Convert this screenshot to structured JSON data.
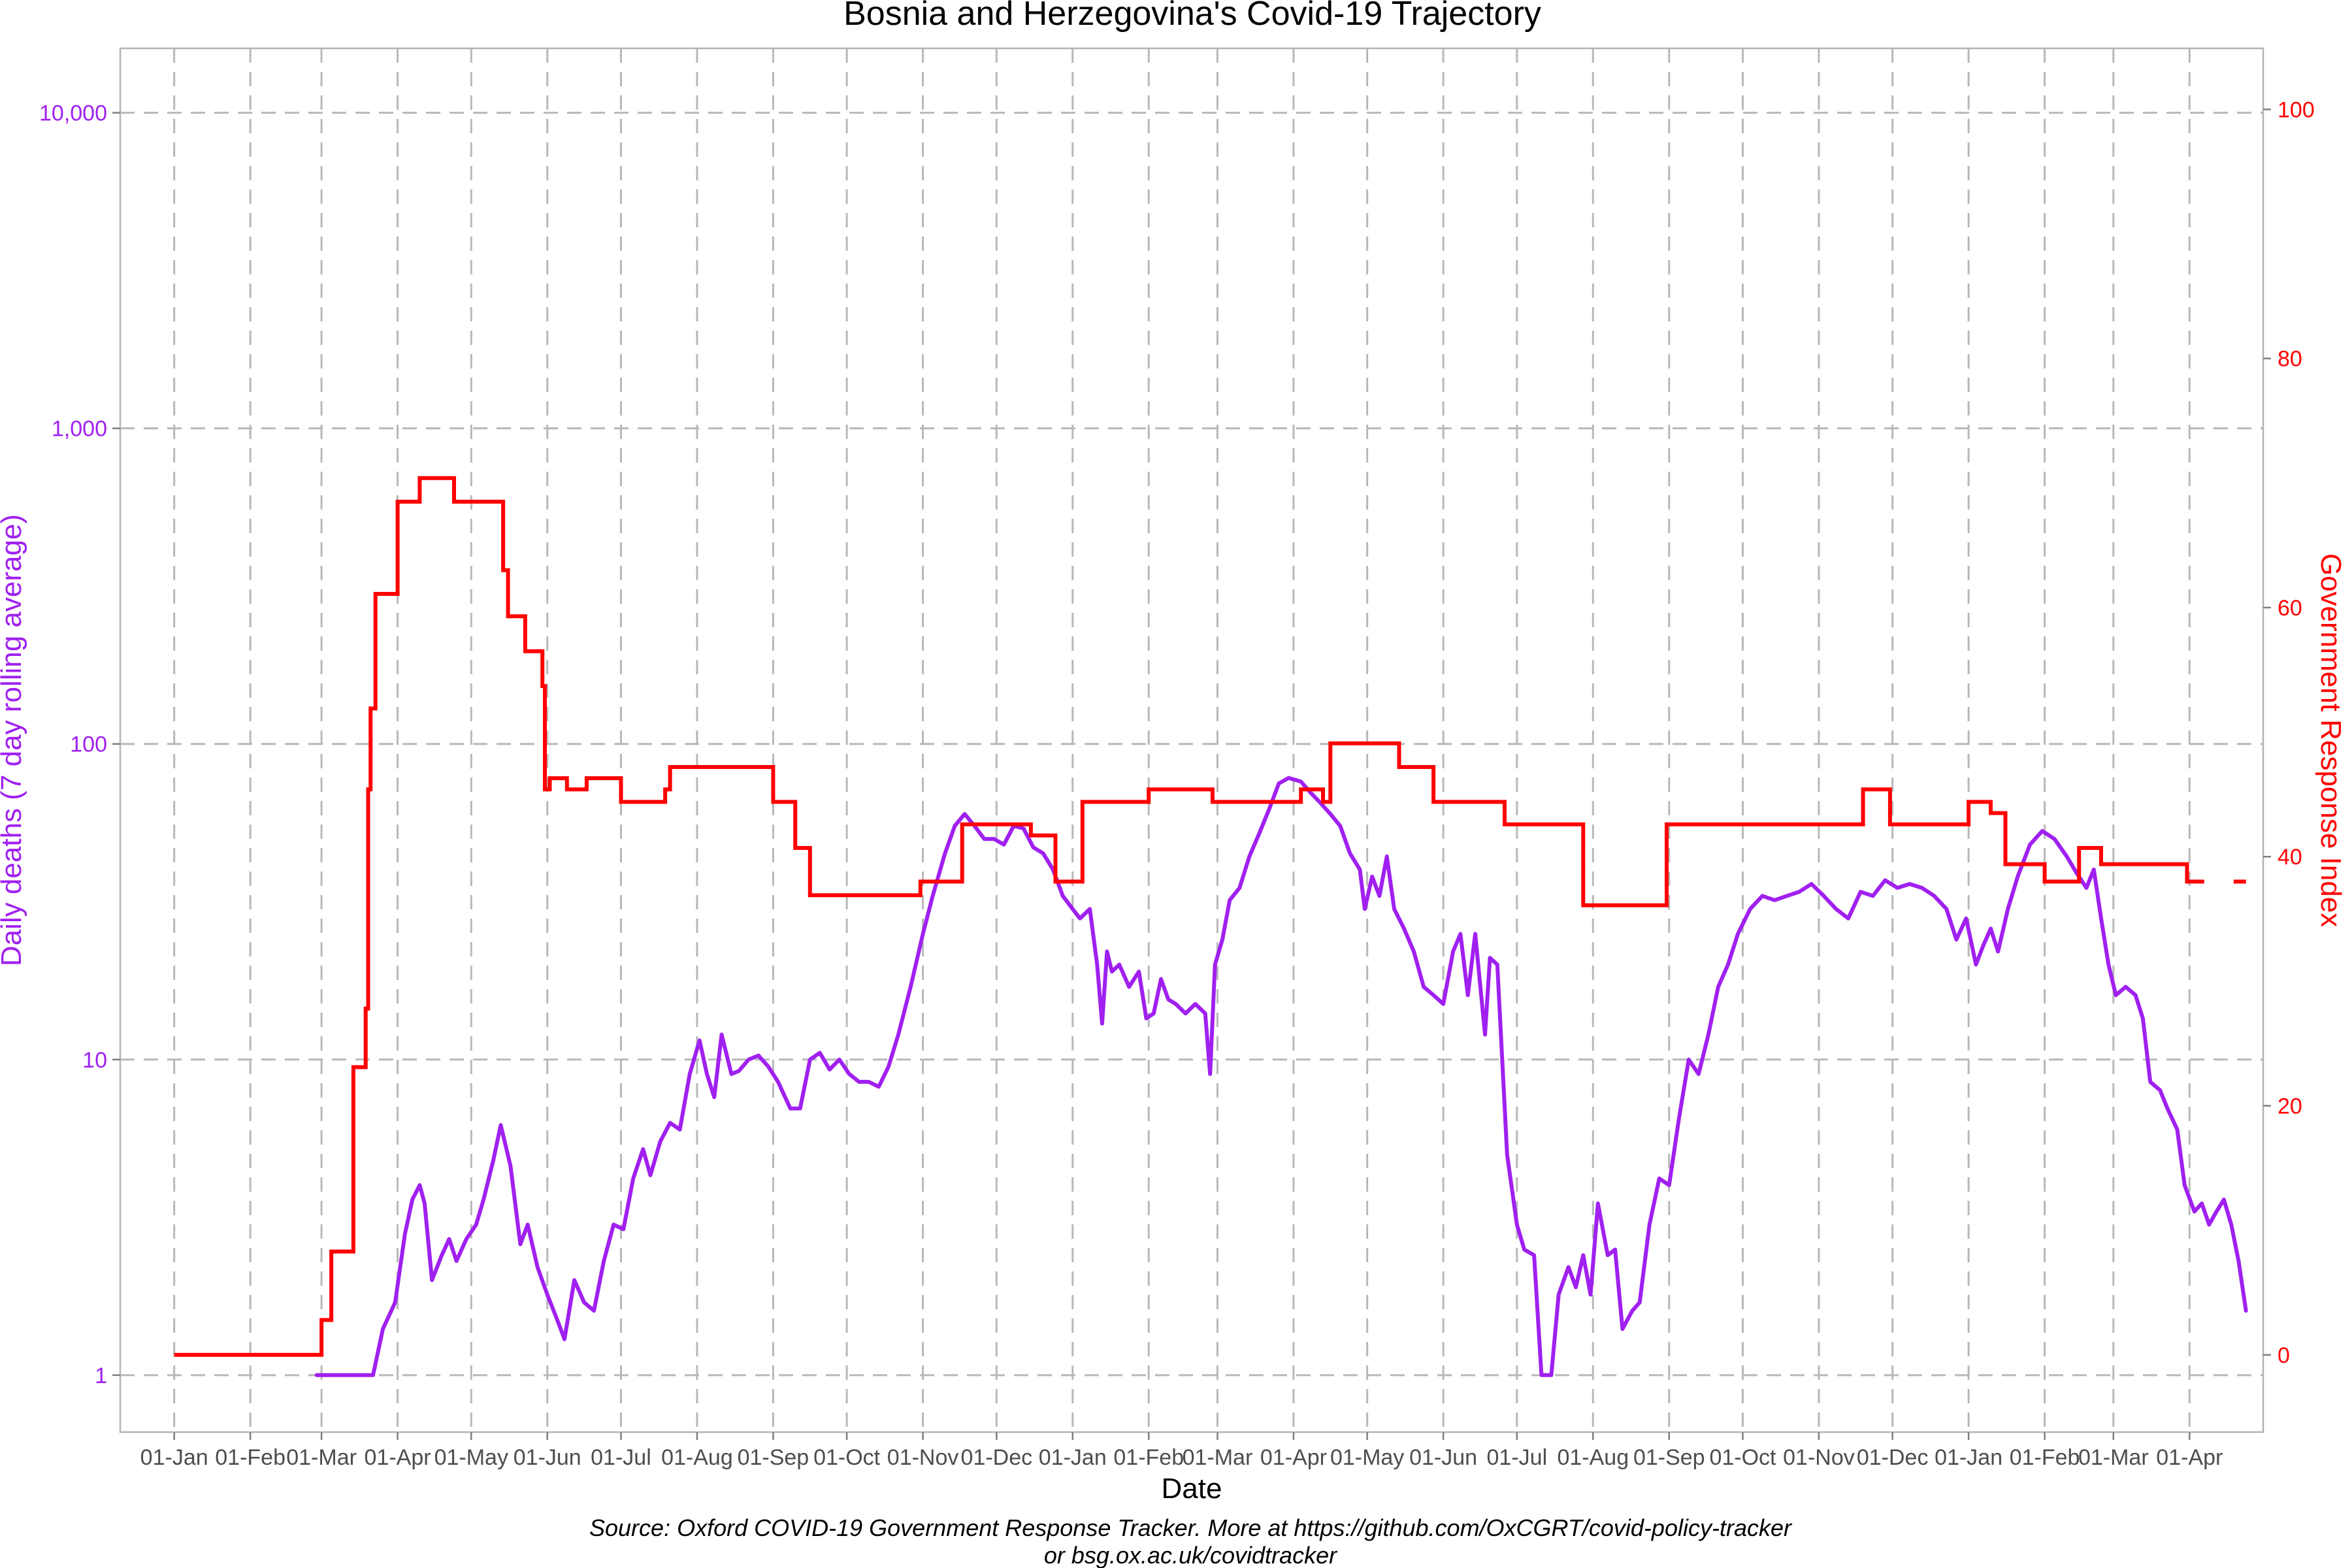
{
  "chart_data": {
    "type": "line",
    "title": "Bosnia and Herzegovina's Covid-19 Trajectory",
    "xlabel": "Date",
    "ylabel_left": "Daily deaths (7 day rolling average)",
    "ylabel_right": "Government Response Index",
    "caption": [
      "Source: Oxford COVID-19 Government Response Tracker. More at https://github.com/OxCGRT/covid-policy-tracker",
      "or bsg.ox.ac.uk/covidtracker"
    ],
    "x_tick_labels": [
      "01-Jan",
      "01-Feb",
      "01-Mar",
      "01-Apr",
      "01-May",
      "01-Jun",
      "01-Jul",
      "01-Aug",
      "01-Sep",
      "01-Oct",
      "01-Nov",
      "01-Dec",
      "01-Jan",
      "01-Feb",
      "01-Mar",
      "01-Apr",
      "01-May",
      "01-Jun",
      "01-Jul",
      "01-Aug",
      "01-Sep",
      "01-Oct",
      "01-Nov",
      "01-Dec",
      "01-Jan",
      "01-Feb",
      "01-Mar",
      "01-Apr"
    ],
    "x_tick_dates": [
      "2020-01-01",
      "2020-02-01",
      "2020-03-01",
      "2020-04-01",
      "2020-05-01",
      "2020-06-01",
      "2020-07-01",
      "2020-08-01",
      "2020-09-01",
      "2020-10-01",
      "2020-11-01",
      "2020-12-01",
      "2021-01-01",
      "2021-02-01",
      "2021-03-01",
      "2021-04-01",
      "2021-05-01",
      "2021-06-01",
      "2021-07-01",
      "2021-08-01",
      "2021-09-01",
      "2021-10-01",
      "2021-11-01",
      "2021-12-01",
      "2022-01-01",
      "2022-02-01",
      "2022-03-01",
      "2022-04-01"
    ],
    "xlim": [
      "2019-12-10",
      "2022-05-01"
    ],
    "y_left": {
      "scale": "log10",
      "lim": [
        0.66,
        16000
      ],
      "ticks": [
        1,
        10,
        100,
        1000,
        10000
      ],
      "tick_labels": [
        "1",
        "10",
        "100",
        "1,000",
        "10,000"
      ]
    },
    "y_right": {
      "scale": "linear",
      "lim": [
        -6.2,
        104.9
      ],
      "ticks": [
        0,
        20,
        40,
        60,
        80,
        100
      ],
      "tick_labels": [
        "0",
        "20",
        "40",
        "60",
        "80",
        "100"
      ]
    },
    "grid": true,
    "colors": {
      "deaths": "#a020f0",
      "stringency": "#ff0000",
      "grid": "#b8b8b8",
      "axis": "#b3b3b3"
    },
    "series": [
      {
        "axis": "left",
        "color": "#a020f0",
        "points": [
          [
            "2020-02-28",
            1
          ],
          [
            "2020-03-22",
            1
          ],
          [
            "2020-03-26",
            1.4
          ],
          [
            "2020-03-31",
            1.7
          ],
          [
            "2020-04-04",
            2.8
          ],
          [
            "2020-04-07",
            3.6
          ],
          [
            "2020-04-10",
            4.0
          ],
          [
            "2020-04-12",
            3.5
          ],
          [
            "2020-04-15",
            2.0
          ],
          [
            "2020-04-19",
            2.4
          ],
          [
            "2020-04-22",
            2.7
          ],
          [
            "2020-04-25",
            2.3
          ],
          [
            "2020-04-29",
            2.7
          ],
          [
            "2020-05-03",
            3.0
          ],
          [
            "2020-05-06",
            3.6
          ],
          [
            "2020-05-10",
            4.8
          ],
          [
            "2020-05-13",
            6.2
          ],
          [
            "2020-05-17",
            4.6
          ],
          [
            "2020-05-21",
            2.6
          ],
          [
            "2020-05-24",
            3.0
          ],
          [
            "2020-05-28",
            2.2
          ],
          [
            "2020-06-01",
            1.8
          ],
          [
            "2020-06-05",
            1.5
          ],
          [
            "2020-06-08",
            1.3
          ],
          [
            "2020-06-12",
            2.0
          ],
          [
            "2020-06-16",
            1.7
          ],
          [
            "2020-06-20",
            1.6
          ],
          [
            "2020-06-24",
            2.3
          ],
          [
            "2020-06-28",
            3.0
          ],
          [
            "2020-07-02",
            2.9
          ],
          [
            "2020-07-06",
            4.2
          ],
          [
            "2020-07-10",
            5.2
          ],
          [
            "2020-07-13",
            4.3
          ],
          [
            "2020-07-17",
            5.5
          ],
          [
            "2020-07-21",
            6.3
          ],
          [
            "2020-07-25",
            6.0
          ],
          [
            "2020-07-29",
            9.0
          ],
          [
            "2020-08-02",
            11.5
          ],
          [
            "2020-08-05",
            9.0
          ],
          [
            "2020-08-08",
            7.6
          ],
          [
            "2020-08-11",
            12.0
          ],
          [
            "2020-08-15",
            9.0
          ],
          [
            "2020-08-18",
            9.2
          ],
          [
            "2020-08-22",
            10.0
          ],
          [
            "2020-08-26",
            10.3
          ],
          [
            "2020-08-30",
            9.5
          ],
          [
            "2020-09-03",
            8.5
          ],
          [
            "2020-09-08",
            7.0
          ],
          [
            "2020-09-12",
            7.0
          ],
          [
            "2020-09-16",
            10.0
          ],
          [
            "2020-09-20",
            10.5
          ],
          [
            "2020-09-24",
            9.3
          ],
          [
            "2020-09-28",
            10.0
          ],
          [
            "2020-10-02",
            9.0
          ],
          [
            "2020-10-06",
            8.5
          ],
          [
            "2020-10-10",
            8.5
          ],
          [
            "2020-10-14",
            8.2
          ],
          [
            "2020-10-18",
            9.5
          ],
          [
            "2020-10-22",
            12.0
          ],
          [
            "2020-10-27",
            17.0
          ],
          [
            "2020-11-01",
            25.0
          ],
          [
            "2020-11-05",
            33.0
          ],
          [
            "2020-11-10",
            45.0
          ],
          [
            "2020-11-14",
            55.0
          ],
          [
            "2020-11-18",
            60.0
          ],
          [
            "2020-11-22",
            55.0
          ],
          [
            "2020-11-26",
            50.0
          ],
          [
            "2020-11-30",
            50.0
          ],
          [
            "2020-12-04",
            48.0
          ],
          [
            "2020-12-08",
            55.0
          ],
          [
            "2020-12-12",
            54.0
          ],
          [
            "2020-12-16",
            47.0
          ],
          [
            "2020-12-20",
            45.0
          ],
          [
            "2020-12-24",
            40.0
          ],
          [
            "2020-12-28",
            33.0
          ],
          [
            "2021-01-01",
            30.0
          ],
          [
            "2021-01-04",
            28.0
          ],
          [
            "2021-01-08",
            30.0
          ],
          [
            "2021-01-11",
            20.0
          ],
          [
            "2021-01-13",
            13.0
          ],
          [
            "2021-01-15",
            22.0
          ],
          [
            "2021-01-17",
            19.0
          ],
          [
            "2021-01-20",
            20.0
          ],
          [
            "2021-01-24",
            17.0
          ],
          [
            "2021-01-28",
            19.0
          ],
          [
            "2021-01-31",
            13.5
          ],
          [
            "2021-02-03",
            14.0
          ],
          [
            "2021-02-06",
            18.0
          ],
          [
            "2021-02-09",
            15.5
          ],
          [
            "2021-02-12",
            15.0
          ],
          [
            "2021-02-16",
            14.0
          ],
          [
            "2021-02-20",
            15.0
          ],
          [
            "2021-02-24",
            14.0
          ],
          [
            "2021-02-26",
            9.0
          ],
          [
            "2021-02-28",
            20.0
          ],
          [
            "2021-03-03",
            24.0
          ],
          [
            "2021-03-06",
            32.0
          ],
          [
            "2021-03-10",
            35.0
          ],
          [
            "2021-03-14",
            44.0
          ],
          [
            "2021-03-18",
            52.0
          ],
          [
            "2021-03-22",
            62.0
          ],
          [
            "2021-03-26",
            75.0
          ],
          [
            "2021-03-30",
            78.0
          ],
          [
            "2021-04-04",
            76.0
          ],
          [
            "2021-04-08",
            70.0
          ],
          [
            "2021-04-12",
            65.0
          ],
          [
            "2021-04-16",
            60.0
          ],
          [
            "2021-04-20",
            55.0
          ],
          [
            "2021-04-24",
            45.0
          ],
          [
            "2021-04-28",
            40.0
          ],
          [
            "2021-04-30",
            30.0
          ],
          [
            "2021-05-03",
            38.0
          ],
          [
            "2021-05-06",
            33.0
          ],
          [
            "2021-05-09",
            44.0
          ],
          [
            "2021-05-12",
            30.0
          ],
          [
            "2021-05-16",
            26.0
          ],
          [
            "2021-05-20",
            22.0
          ],
          [
            "2021-05-24",
            17.0
          ],
          [
            "2021-05-28",
            16.0
          ],
          [
            "2021-06-01",
            15.0
          ],
          [
            "2021-06-05",
            22.0
          ],
          [
            "2021-06-08",
            25.0
          ],
          [
            "2021-06-11",
            16.0
          ],
          [
            "2021-06-14",
            25.0
          ],
          [
            "2021-06-18",
            12.0
          ],
          [
            "2021-06-20",
            21.0
          ],
          [
            "2021-06-23",
            20.0
          ],
          [
            "2021-06-27",
            5.0
          ],
          [
            "2021-07-01",
            3.0
          ],
          [
            "2021-07-04",
            2.5
          ],
          [
            "2021-07-08",
            2.4
          ],
          [
            "2021-07-11",
            1.0
          ],
          [
            "2021-07-15",
            1.0
          ],
          [
            "2021-07-18",
            1.8
          ],
          [
            "2021-07-22",
            2.2
          ],
          [
            "2021-07-25",
            1.9
          ],
          [
            "2021-07-28",
            2.4
          ],
          [
            "2021-07-31",
            1.8
          ],
          [
            "2021-08-03",
            3.5
          ],
          [
            "2021-08-07",
            2.4
          ],
          [
            "2021-08-10",
            2.5
          ],
          [
            "2021-08-13",
            1.4
          ],
          [
            "2021-08-17",
            1.6
          ],
          [
            "2021-08-20",
            1.7
          ],
          [
            "2021-08-24",
            3.0
          ],
          [
            "2021-08-28",
            4.2
          ],
          [
            "2021-09-01",
            4.0
          ],
          [
            "2021-09-05",
            6.5
          ],
          [
            "2021-09-09",
            10.0
          ],
          [
            "2021-09-13",
            9.0
          ],
          [
            "2021-09-17",
            12.0
          ],
          [
            "2021-09-21",
            17.0
          ],
          [
            "2021-09-25",
            20.0
          ],
          [
            "2021-09-29",
            25.0
          ],
          [
            "2021-10-04",
            30.0
          ],
          [
            "2021-10-09",
            33.0
          ],
          [
            "2021-10-14",
            32.0
          ],
          [
            "2021-10-19",
            33.0
          ],
          [
            "2021-10-24",
            34.0
          ],
          [
            "2021-10-29",
            36.0
          ],
          [
            "2021-11-03",
            33.0
          ],
          [
            "2021-11-08",
            30.0
          ],
          [
            "2021-11-13",
            28.0
          ],
          [
            "2021-11-18",
            34.0
          ],
          [
            "2021-11-23",
            33.0
          ],
          [
            "2021-11-28",
            37.0
          ],
          [
            "2021-12-03",
            35.0
          ],
          [
            "2021-12-08",
            36.0
          ],
          [
            "2021-12-13",
            35.0
          ],
          [
            "2021-12-18",
            33.0
          ],
          [
            "2021-12-23",
            30.0
          ],
          [
            "2021-12-27",
            24.0
          ],
          [
            "2021-12-31",
            28.0
          ],
          [
            "2022-01-04",
            20.0
          ],
          [
            "2022-01-07",
            23.0
          ],
          [
            "2022-01-10",
            26.0
          ],
          [
            "2022-01-13",
            22.0
          ],
          [
            "2022-01-17",
            30.0
          ],
          [
            "2022-01-21",
            38.0
          ],
          [
            "2022-01-26",
            48.0
          ],
          [
            "2022-01-31",
            53.0
          ],
          [
            "2022-02-05",
            50.0
          ],
          [
            "2022-02-10",
            44.0
          ],
          [
            "2022-02-14",
            39.0
          ],
          [
            "2022-02-18",
            35.0
          ],
          [
            "2022-02-21",
            40.0
          ],
          [
            "2022-02-24",
            28.0
          ],
          [
            "2022-02-27",
            20.0
          ],
          [
            "2022-03-02",
            16.0
          ],
          [
            "2022-03-06",
            17.0
          ],
          [
            "2022-03-10",
            16.0
          ],
          [
            "2022-03-13",
            13.5
          ],
          [
            "2022-03-16",
            8.5
          ],
          [
            "2022-03-20",
            8.0
          ],
          [
            "2022-03-23",
            7.0
          ],
          [
            "2022-03-27",
            6.0
          ],
          [
            "2022-03-30",
            4.0
          ],
          [
            "2022-04-03",
            3.3
          ],
          [
            "2022-04-06",
            3.5
          ],
          [
            "2022-04-09",
            3.0
          ],
          [
            "2022-04-12",
            3.3
          ],
          [
            "2022-04-15",
            3.6
          ],
          [
            "2022-04-18",
            3.0
          ],
          [
            "2022-04-21",
            2.3
          ],
          [
            "2022-04-24",
            1.6
          ]
        ]
      },
      {
        "axis": "right",
        "color": "#ff0000",
        "steps": [
          [
            "2020-01-01",
            0
          ],
          [
            "2020-03-01",
            2.8
          ],
          [
            "2020-03-05",
            8.3
          ],
          [
            "2020-03-14",
            23.1
          ],
          [
            "2020-03-19",
            27.8
          ],
          [
            "2020-03-20",
            45.4
          ],
          [
            "2020-03-21",
            51.9
          ],
          [
            "2020-03-23",
            61.1
          ],
          [
            "2020-04-01",
            68.5
          ],
          [
            "2020-04-10",
            70.4
          ],
          [
            "2020-04-24",
            68.5
          ],
          [
            "2020-05-14",
            63.0
          ],
          [
            "2020-05-16",
            59.3
          ],
          [
            "2020-05-23",
            56.5
          ],
          [
            "2020-05-30",
            53.7
          ],
          [
            "2020-05-31",
            45.4
          ],
          [
            "2020-06-02",
            46.3
          ],
          [
            "2020-06-09",
            45.4
          ],
          [
            "2020-06-17",
            46.3
          ],
          [
            "2020-07-01",
            44.4
          ],
          [
            "2020-07-19",
            45.4
          ],
          [
            "2020-07-21",
            47.2
          ],
          [
            "2020-09-01",
            44.4
          ],
          [
            "2020-09-10",
            40.7
          ],
          [
            "2020-09-16",
            36.9
          ],
          [
            "2020-10-31",
            38.0
          ],
          [
            "2020-11-17",
            42.6
          ],
          [
            "2020-12-15",
            41.7
          ],
          [
            "2020-12-25",
            38.0
          ],
          [
            "2021-01-05",
            44.4
          ],
          [
            "2021-02-01",
            45.4
          ],
          [
            "2021-02-27",
            44.4
          ],
          [
            "2021-04-04",
            45.4
          ],
          [
            "2021-04-13",
            44.4
          ],
          [
            "2021-04-16",
            49.1
          ],
          [
            "2021-05-14",
            47.2
          ],
          [
            "2021-05-28",
            44.4
          ],
          [
            "2021-06-26",
            42.6
          ],
          [
            "2021-07-28",
            36.1
          ],
          [
            "2021-08-31",
            42.6
          ],
          [
            "2021-11-19",
            45.4
          ],
          [
            "2021-11-30",
            42.6
          ],
          [
            "2022-01-01",
            44.4
          ],
          [
            "2022-01-10",
            43.5
          ],
          [
            "2022-01-16",
            39.4
          ],
          [
            "2022-02-01",
            38.0
          ],
          [
            "2022-02-15",
            40.7
          ],
          [
            "2022-02-24",
            39.4
          ],
          [
            "2022-03-31",
            38.0
          ],
          [
            "2022-04-07",
            null
          ],
          [
            "2022-04-19",
            38.0
          ],
          [
            "2022-04-24",
            null
          ]
        ]
      }
    ]
  }
}
